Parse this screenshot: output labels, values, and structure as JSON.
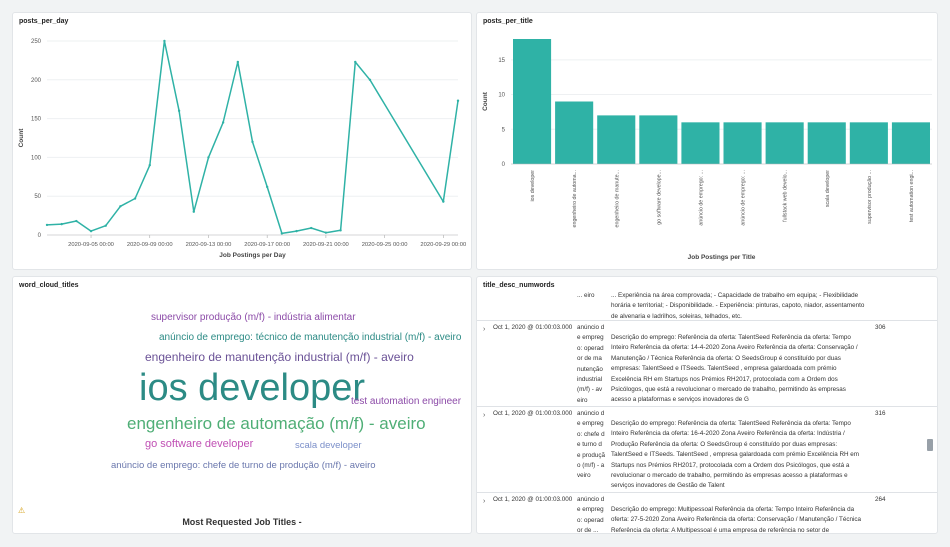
{
  "panels": {
    "posts_per_day": {
      "title": "posts_per_day"
    },
    "posts_per_title": {
      "title": "posts_per_title"
    },
    "word_cloud": {
      "title": "word_cloud_titles",
      "footer": "Most Requested Job Titles -"
    },
    "title_desc": {
      "title": "title_desc_numwords"
    }
  },
  "chart_data": [
    {
      "type": "line",
      "color": "#2fb2a6",
      "xlabel": "Job Postings per Day",
      "ylabel": "Count",
      "ylim": [
        0,
        250
      ],
      "yticks": [
        0,
        50,
        100,
        150,
        200,
        250
      ],
      "xlim": [
        "2020-09-02",
        "2020-09-30"
      ],
      "xtick_labels": [
        "2020-09-05 00:00",
        "2020-09-09 00:00",
        "2020-09-13 00:00",
        "2020-09-17 00:00",
        "2020-09-21 00:00",
        "2020-09-25 00:00",
        "2020-09-29 00:00"
      ],
      "xtick_dates": [
        "2020-09-05",
        "2020-09-09",
        "2020-09-13",
        "2020-09-17",
        "2020-09-21",
        "2020-09-25",
        "2020-09-29"
      ],
      "series": [
        {
          "x": [
            "2020-09-02",
            "2020-09-03",
            "2020-09-04",
            "2020-09-05",
            "2020-09-06",
            "2020-09-07",
            "2020-09-08",
            "2020-09-09",
            "2020-09-10",
            "2020-09-11",
            "2020-09-12",
            "2020-09-13",
            "2020-09-14",
            "2020-09-15",
            "2020-09-16",
            "2020-09-17",
            "2020-09-18",
            "2020-09-19",
            "2020-09-20",
            "2020-09-21",
            "2020-09-22",
            "2020-09-23",
            "2020-09-24",
            "2020-09-29",
            "2020-09-30"
          ],
          "y": [
            13,
            14,
            18,
            5,
            12,
            37,
            47,
            90,
            250,
            160,
            30,
            100,
            145,
            223,
            120,
            62,
            2,
            5,
            9,
            3,
            6,
            223,
            200,
            43,
            173
          ]
        }
      ]
    },
    {
      "type": "bar",
      "color": "#2fb2a6",
      "xlabel": "Job Postings per Title",
      "ylabel": "Count",
      "ylim": [
        0,
        18
      ],
      "yticks": [
        0,
        5,
        10,
        15
      ],
      "categories": [
        "ios developer",
        "engenheiro de automa...",
        "engenheiro de manute...",
        "go software develope...",
        "anúncio de emprego: ...",
        "anúncio de emprego: ...",
        "fullstack web develo...",
        "scala developer",
        "supervisor produção ...",
        "test automation engi..."
      ],
      "values": [
        18,
        9,
        7,
        7,
        6,
        6,
        6,
        6,
        6,
        6
      ]
    }
  ],
  "word_cloud": {
    "words": [
      {
        "text": "supervisor produção (m/f) - indústria alimentar",
        "color": "#8c4ba8"
      },
      {
        "text": "anúncio de emprego: técnico de manutenção industrial (m/f) - aveiro",
        "color": "#2c8b85"
      },
      {
        "text": "engenheiro de manutenção industrial (m/f) - aveiro",
        "color": "#6a5196"
      },
      {
        "text": "ios developer",
        "color": "#2c8b85"
      },
      {
        "text": "test automation engineer",
        "color": "#8c4ba8"
      },
      {
        "text": "engenheiro de automação (m/f) - aveiro",
        "color": "#4fae76"
      },
      {
        "text": "go software developer",
        "color": "#c04fb4"
      },
      {
        "text": "scala developer",
        "color": "#7b8fc9"
      },
      {
        "text": "anúncio de emprego: chefe de turno de produção (m/f) - aveiro",
        "color": "#6a77ad"
      }
    ]
  },
  "table": {
    "rows": [
      {
        "timestamp": "",
        "col1": "... eiro",
        "desc": "... Experiência na área comprovada; - Capacidade de trabalho em equipa; - Flexibilidade horária e territorial; - Disponibilidade. - Experiência: pinturas, capoto, niador, assentamento de alvenaria e ladrilhos, soleiras, telhados, etc.",
        "count": ""
      },
      {
        "timestamp": "Oct 1, 2020 @ 01:00:03.000",
        "col1": "anúncio de emprego: operador de manutenção industrial (m/f) - aveiro",
        "desc": "Descrição do emprego: Referência da oferta: TalentSeed Referência da oferta: Tempo Inteiro Referência da oferta: 14-4-2020 Zona Aveiro Referência da oferta: Conservação / Manutenção / Técnica Referência da oferta: O SeedsGroup é constituído por duas empresas: TalentSeed e ITSeeds. TalentSeed , empresa galardoada com prémio Excelência RH em Startups nos Prémios RH2017, protocolada com a Ordem dos Psicólogos, que está a revolucionar o mercado de trabalho, permitindo às empresas acesso a plataformas e serviços inovadores de G",
        "count": "306"
      },
      {
        "timestamp": "Oct 1, 2020 @ 01:00:03.000",
        "col1": "anúncio de emprego: chefe de turno de produção (m/f) - aveiro",
        "desc": "Descrição do emprego: Referência da oferta: TalentSeed Referência da oferta: Tempo Inteiro Referência da oferta: 16-4-2020 Zona Aveiro Referência da oferta: Indústria / Produção Referência da oferta: O SeedsGroup é constituído por duas empresas: TalentSeed e ITSeeds. TalentSeed , empresa galardoada com prémio Excelência RH em Startups nos Prémios RH2017, protocolada com a Ordem dos Psicólogos, que está a revolucionar o mercado de trabalho, permitindo às empresas acesso a plataformas e serviços inovadores de Gestão de Talent",
        "count": "316"
      },
      {
        "timestamp": "Oct 1, 2020 @ 01:00:03.000",
        "col1": "anúncio de emprego: operador de ...",
        "desc": "Descrição do emprego: Multipessoal Referência da oferta: Tempo Inteiro Referência da oferta: 27-5-2020 Zona Aveiro Referência da oferta: Conservação / Manutenção / Técnica Referência da oferta: A Multipessoal é uma empresa de referência no setor de",
        "count": "264"
      }
    ]
  }
}
